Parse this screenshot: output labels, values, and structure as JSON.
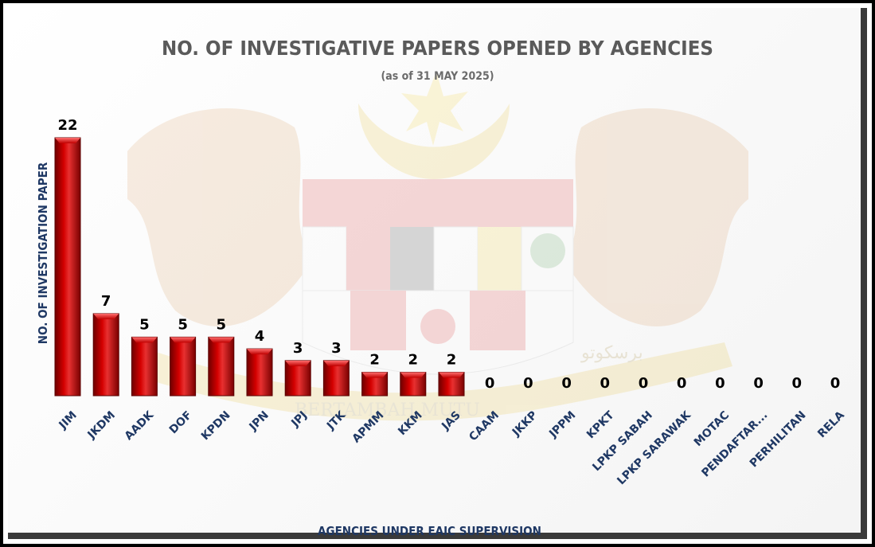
{
  "chart_data": {
    "type": "bar",
    "title": "NO. OF INVESTIGATIVE PAPERS OPENED BY AGENCIES",
    "subtitle": "(as of 31 MAY 2025)",
    "xlabel": "AGENCIES UNDER EAIC SUPERVISION",
    "ylabel": "NO. OF INVESTIGATION PAPER",
    "categories": [
      "JIM",
      "JKDM",
      "AADK",
      "DOF",
      "KPDN",
      "JPN",
      "JPJ",
      "JTK",
      "APMM",
      "KKM",
      "JAS",
      "CAAM",
      "JKKP",
      "JPPM",
      "KPKT",
      "LPKP SABAH",
      "LPKP SARAWAK",
      "MOTAC",
      "PENDAFTAR...",
      "PERHILITAN",
      "RELA"
    ],
    "values": [
      22,
      7,
      5,
      5,
      5,
      4,
      3,
      3,
      2,
      2,
      2,
      0,
      0,
      0,
      0,
      0,
      0,
      0,
      0,
      0,
      0
    ],
    "ylim": [
      0,
      22
    ],
    "grid": false,
    "legend": "none",
    "colors": {
      "bar": "#c00000",
      "bar_dark": "#6e0000",
      "label": "#000000",
      "axis_text": "#1f3864",
      "title": "#5a5a5a"
    }
  },
  "watermark": {
    "ribbon_text": "BERTAMBAH MUTU",
    "ribbon_jawi": "برسکوتو"
  }
}
